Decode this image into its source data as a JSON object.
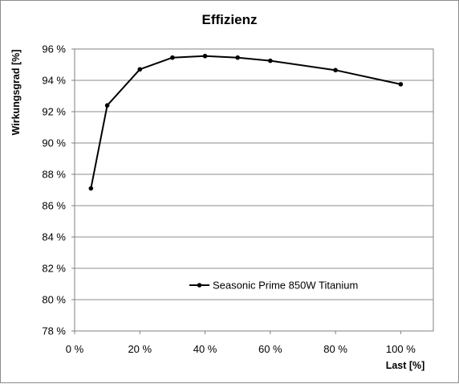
{
  "chart_data": {
    "type": "line",
    "title": "Effizienz",
    "xlabel": "Last [%]",
    "ylabel": "Wirkungsgrad [%]",
    "xlim": [
      0,
      110
    ],
    "ylim": [
      78,
      96
    ],
    "x_ticks": [
      0,
      20,
      40,
      60,
      80,
      100
    ],
    "x_tick_labels": [
      "0 %",
      "20 %",
      "40 %",
      "60 %",
      "80 %",
      "100 %"
    ],
    "y_ticks": [
      78,
      80,
      82,
      84,
      86,
      88,
      90,
      92,
      94,
      96
    ],
    "y_tick_labels": [
      "78 %",
      "80 %",
      "82 %",
      "84 %",
      "86 %",
      "88 %",
      "90 %",
      "92 %",
      "94 %",
      "96 %"
    ],
    "grid": true,
    "legend_position": "lower-center",
    "series": [
      {
        "name": "Seasonic Prime 850W Titanium",
        "color": "#000000",
        "x": [
          5,
          10,
          20,
          30,
          40,
          50,
          60,
          80,
          100
        ],
        "y": [
          87.1,
          92.4,
          94.7,
          95.45,
          95.55,
          95.45,
          95.25,
          94.65,
          93.75
        ]
      }
    ]
  }
}
